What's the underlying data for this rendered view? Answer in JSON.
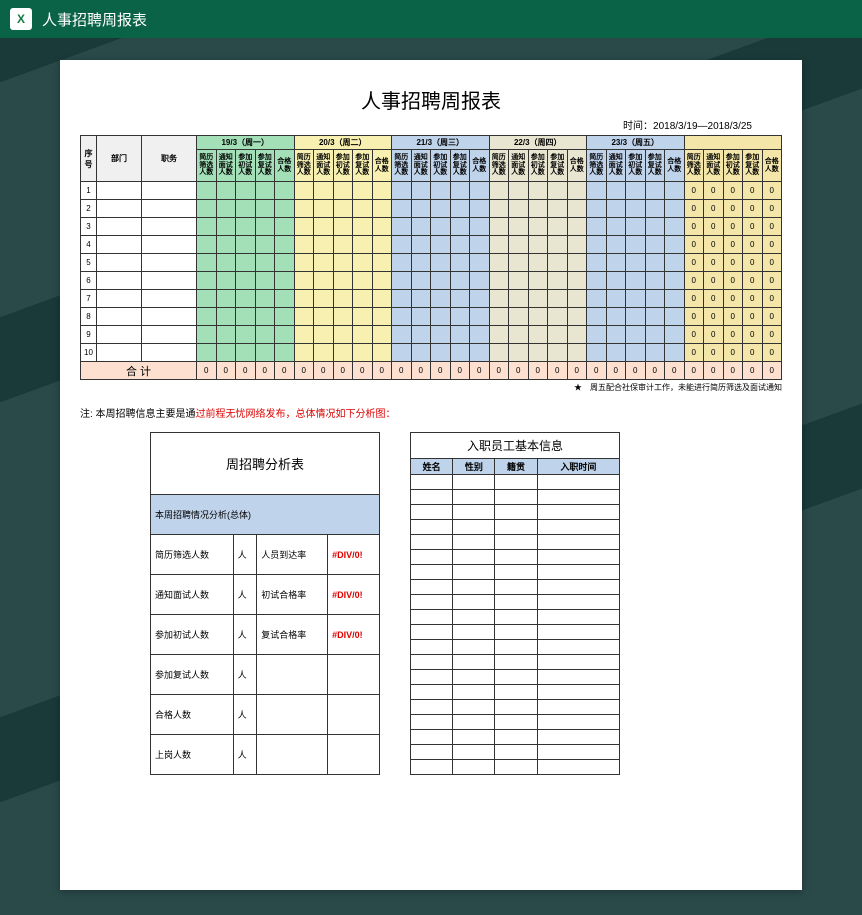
{
  "app": {
    "title": "人事招聘周报表"
  },
  "report": {
    "title": "人事招聘周报表",
    "time_label": "时间：2018/3/19—2018/3/25",
    "header": {
      "seq": "序号",
      "dept": "部门",
      "job": "职务"
    },
    "days": [
      {
        "label": "19/3（周一）",
        "class": "c-green"
      },
      {
        "label": "20/3（周二）",
        "class": "c-yellow"
      },
      {
        "label": "21/3（周三）",
        "class": "c-blue"
      },
      {
        "label": "22/3（周四）",
        "class": "c-beige"
      },
      {
        "label": "23/3（周五）",
        "class": "c-blue"
      }
    ],
    "sub_headers": [
      "简历筛选人数",
      "通知面试人数",
      "参加初试人数",
      "参加复试人数",
      "合格人数"
    ],
    "rows": [
      "1",
      "2",
      "3",
      "4",
      "5",
      "6",
      "7",
      "8",
      "9",
      "10"
    ],
    "totals_label": "合 计",
    "totals_value": "0",
    "summary_zero": "0",
    "star_note": "★　周五配合社保审计工作，未能进行简历筛选及面试通知",
    "note_prefix": "注: 本周招聘信息主要是通",
    "note_red": "过前程无忧网络发布，总体情况如下分析图："
  },
  "analysis": {
    "title": "周招聘分析表",
    "subtitle": "本周招聘情况分析(总体)",
    "rows": [
      {
        "a": "简历筛选人数",
        "b": "人",
        "c": "人员到达率",
        "d": "#DIV/0!"
      },
      {
        "a": "通知面试人数",
        "b": "人",
        "c": "初试合格率",
        "d": "#DIV/0!"
      },
      {
        "a": "参加初试人数",
        "b": "人",
        "c": "复试合格率",
        "d": "#DIV/0!"
      },
      {
        "a": "参加复试人数",
        "b": "人",
        "c": "",
        "d": ""
      },
      {
        "a": "合格人数",
        "b": "人",
        "c": "",
        "d": ""
      },
      {
        "a": "上岗人数",
        "b": "人",
        "c": "",
        "d": ""
      }
    ]
  },
  "emp": {
    "title": "入职员工基本信息",
    "headers": [
      "姓名",
      "性别",
      "籍贯",
      "入职时间"
    ],
    "row_count": 20
  }
}
